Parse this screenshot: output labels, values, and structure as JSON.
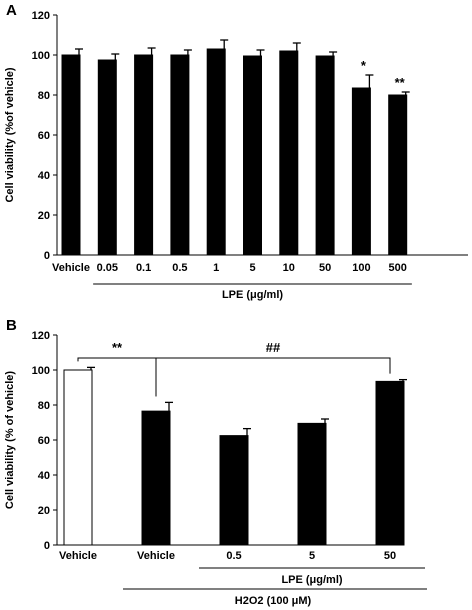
{
  "chart_data": [
    {
      "panel_label": "A",
      "type": "bar",
      "ylabel": "Cell viability (%of vehicle)",
      "ylim": [
        0,
        120
      ],
      "yticks": [
        0,
        20,
        40,
        60,
        80,
        100,
        120
      ],
      "categories": [
        "Vehicle",
        "0.05",
        "0.1",
        "0.5",
        "1",
        "5",
        "10",
        "50",
        "100",
        "500"
      ],
      "values": [
        100,
        97.5,
        100,
        100,
        103,
        99.5,
        102,
        99.5,
        83.5,
        80
      ],
      "errors": [
        3,
        3,
        3.5,
        2.5,
        4.5,
        3,
        4,
        2,
        6.5,
        1.5
      ],
      "significance": [
        "",
        "",
        "",
        "",
        "",
        "",
        "",
        "",
        "*",
        "**"
      ],
      "bar_colors": [
        "#000000",
        "#000000",
        "#000000",
        "#000000",
        "#000000",
        "#000000",
        "#000000",
        "#000000",
        "#000000",
        "#000000"
      ],
      "group_label": "LPE (μg/ml)",
      "group_from": 1,
      "group_to": 9
    },
    {
      "panel_label": "B",
      "type": "bar",
      "ylabel": "Cell viability (% of vehicle)",
      "ylim": [
        0,
        120
      ],
      "yticks": [
        0,
        20,
        40,
        60,
        80,
        100,
        120
      ],
      "categories": [
        "Vehicle",
        "Vehicle",
        "0.5",
        "5",
        "50"
      ],
      "values": [
        100,
        76.5,
        62.5,
        69.5,
        93.5
      ],
      "errors": [
        1.5,
        5,
        4,
        2.5,
        1
      ],
      "bar_colors": [
        "#ffffff",
        "#000000",
        "#000000",
        "#000000",
        "#000000"
      ],
      "group_label": "LPE (μg/ml)",
      "group_from": 2,
      "group_to": 4,
      "outer_group_label": "H2O2 (100 μM)",
      "outer_group_from": 1,
      "outer_group_to": 4,
      "brackets": [
        {
          "from": 0,
          "to": 1,
          "label": "**"
        },
        {
          "from": 1,
          "to": 4,
          "label": "##"
        }
      ]
    }
  ]
}
